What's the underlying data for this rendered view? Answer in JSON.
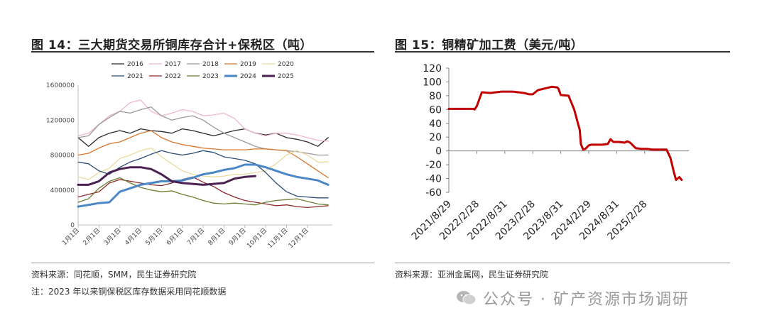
{
  "left": {
    "title": "图 14：三大期货交易所铜库存合计+保税区（吨）",
    "source": "资料来源：同花顺，SMM，民生证券研究院",
    "note": "注：2023 年以来铜保税区库存数据采用同花顺数据"
  },
  "right": {
    "title": "图 15：铜精矿加工费（美元/吨）",
    "source": "资料来源：亚洲金属网，民生证券研究院"
  },
  "watermark": "公众号 · 矿产资源市场调研",
  "chart_data": [
    {
      "type": "line",
      "ylim": [
        0,
        1600000
      ],
      "yticks": [
        0,
        400000,
        800000,
        1200000,
        1600000
      ],
      "x_range": [
        0,
        12.2
      ],
      "xticks": [
        "1月1日",
        "2月1日",
        "3月1日",
        "4月1日",
        "5月1日",
        "6月1日",
        "7月1日",
        "8月1日",
        "9月1日",
        "10月1日",
        "11月1日",
        "12月1日"
      ],
      "legend_position": "top",
      "series": [
        {
          "name": "2016",
          "color": "#2b2b2b",
          "width": 1.3,
          "x": [
            0,
            0.5,
            1,
            1.5,
            2,
            2.5,
            3,
            3.5,
            4,
            4.5,
            5,
            5.5,
            6,
            6.5,
            7,
            7.5,
            8,
            8.5,
            9,
            9.5,
            10,
            10.5,
            11,
            11.5,
            12
          ],
          "y": [
            1000000,
            900000,
            1000000,
            1050000,
            1080000,
            1050000,
            1100000,
            1080000,
            1070000,
            1050000,
            1100000,
            1080000,
            1050000,
            1020000,
            1050000,
            1080000,
            1100000,
            1050000,
            1030000,
            1050000,
            1000000,
            980000,
            950000,
            900000,
            1000000
          ]
        },
        {
          "name": "2017",
          "color": "#f0b8c6",
          "width": 1.3,
          "x": [
            0,
            0.5,
            1,
            1.5,
            2,
            2.5,
            3,
            3.5,
            4,
            4.5,
            5,
            5.5,
            6,
            6.5,
            7,
            7.5,
            8,
            8.5,
            9,
            9.5,
            10,
            10.5,
            11,
            11.5,
            12
          ],
          "y": [
            1020000,
            1050000,
            1150000,
            1250000,
            1300000,
            1400000,
            1430000,
            1300000,
            1250000,
            1280000,
            1320000,
            1300000,
            1250000,
            1260000,
            1280000,
            1220000,
            1100000,
            1050000,
            1020000,
            1050000,
            1050000,
            1030000,
            1000000,
            970000,
            960000
          ]
        },
        {
          "name": "2018",
          "color": "#9a9a9a",
          "width": 1.3,
          "x": [
            0,
            0.5,
            1,
            1.5,
            2,
            2.5,
            3,
            3.5,
            4,
            4.5,
            5,
            5.5,
            6,
            6.5,
            7,
            7.5,
            8,
            8.5,
            9,
            9.5,
            10,
            10.5,
            11,
            11.5,
            12
          ],
          "y": [
            1000000,
            1020000,
            1150000,
            1230000,
            1300000,
            1280000,
            1320000,
            1350000,
            1250000,
            1200000,
            1230000,
            1250000,
            1200000,
            1120000,
            1050000,
            1000000,
            950000,
            900000,
            870000,
            860000,
            850000,
            840000,
            820000,
            800000,
            800000
          ]
        },
        {
          "name": "2019",
          "color": "#d9762b",
          "width": 1.3,
          "x": [
            0,
            0.5,
            1,
            1.5,
            2,
            2.5,
            3,
            3.5,
            4,
            4.5,
            5,
            5.5,
            6,
            6.5,
            7,
            7.5,
            8,
            8.5,
            9,
            9.5,
            10,
            10.5,
            11,
            11.5,
            12
          ],
          "y": [
            800000,
            820000,
            880000,
            930000,
            950000,
            1000000,
            1050000,
            1080000,
            1000000,
            950000,
            920000,
            900000,
            880000,
            870000,
            860000,
            860000,
            860000,
            870000,
            870000,
            860000,
            850000,
            780000,
            700000,
            620000,
            540000
          ]
        },
        {
          "name": "2020",
          "color": "#eadba0",
          "width": 1.3,
          "x": [
            0,
            0.5,
            1,
            1.5,
            2,
            2.5,
            3,
            3.5,
            4,
            4.5,
            5,
            5.5,
            6,
            6.5,
            7,
            7.5,
            8,
            8.5,
            9,
            9.5,
            10,
            10.5,
            11,
            11.5,
            12
          ],
          "y": [
            550000,
            520000,
            600000,
            650000,
            760000,
            800000,
            850000,
            880000,
            780000,
            700000,
            620000,
            580000,
            560000,
            550000,
            560000,
            580000,
            580000,
            600000,
            620000,
            700000,
            800000,
            850000,
            800000,
            720000,
            720000
          ]
        },
        {
          "name": "2021",
          "color": "#2c4d77",
          "width": 1.3,
          "x": [
            0,
            0.5,
            1,
            1.5,
            2,
            2.5,
            3,
            3.5,
            4,
            4.5,
            5,
            5.5,
            6,
            6.5,
            7,
            7.5,
            8,
            8.5,
            9,
            9.5,
            10,
            10.5,
            11,
            11.5,
            12
          ],
          "y": [
            720000,
            700000,
            620000,
            580000,
            660000,
            720000,
            760000,
            810000,
            850000,
            820000,
            800000,
            820000,
            850000,
            830000,
            780000,
            760000,
            740000,
            700000,
            600000,
            480000,
            380000,
            330000,
            320000,
            310000,
            310000
          ]
        },
        {
          "name": "2022",
          "color": "#8e2b2b",
          "width": 1.3,
          "x": [
            0,
            0.5,
            1,
            1.5,
            2,
            2.5,
            3,
            3.5,
            4,
            4.5,
            5,
            5.5,
            6,
            6.5,
            7,
            7.5,
            8,
            8.5,
            9,
            9.5,
            10,
            10.5,
            11,
            11.5,
            12
          ],
          "y": [
            320000,
            350000,
            380000,
            480000,
            520000,
            500000,
            480000,
            460000,
            450000,
            480000,
            520000,
            550000,
            490000,
            440000,
            370000,
            320000,
            280000,
            260000,
            240000,
            220000,
            230000,
            210000,
            200000,
            210000,
            220000
          ]
        },
        {
          "name": "2023",
          "color": "#6b7f2f",
          "width": 1.3,
          "x": [
            0,
            0.5,
            1,
            1.5,
            2,
            2.5,
            3,
            3.5,
            4,
            4.5,
            5,
            5.5,
            6,
            6.5,
            7,
            7.5,
            8,
            8.5,
            9,
            9.5,
            10,
            10.5,
            11,
            11.5,
            12
          ],
          "y": [
            260000,
            300000,
            420000,
            500000,
            540000,
            480000,
            430000,
            400000,
            380000,
            390000,
            350000,
            320000,
            280000,
            250000,
            240000,
            250000,
            240000,
            230000,
            260000,
            280000,
            290000,
            300000,
            270000,
            240000,
            230000
          ]
        },
        {
          "name": "2024",
          "color": "#4b86c6",
          "width": 3,
          "x": [
            0,
            0.5,
            1,
            1.5,
            2,
            2.5,
            3,
            3.5,
            4,
            4.5,
            5,
            5.5,
            6,
            6.5,
            7,
            7.5,
            8,
            8.5,
            9,
            9.5,
            10,
            10.5,
            11,
            11.5,
            12
          ],
          "y": [
            210000,
            230000,
            250000,
            260000,
            380000,
            420000,
            460000,
            480000,
            500000,
            500000,
            510000,
            540000,
            580000,
            600000,
            630000,
            650000,
            690000,
            690000,
            660000,
            620000,
            580000,
            550000,
            530000,
            510000,
            460000
          ]
        },
        {
          "name": "2025",
          "color": "#4a2150",
          "width": 3,
          "x": [
            0,
            0.5,
            1,
            1.5,
            2,
            2.5,
            3,
            3.5,
            4,
            4.5,
            5,
            5.5,
            6,
            6.5,
            7,
            7.5,
            8,
            8.5
          ],
          "y": [
            460000,
            460000,
            500000,
            600000,
            640000,
            660000,
            660000,
            640000,
            580000,
            500000,
            480000,
            470000,
            460000,
            470000,
            480000,
            530000,
            550000,
            560000
          ]
        }
      ]
    },
    {
      "type": "line",
      "ylim": [
        -60,
        120
      ],
      "yticks": [
        -60,
        -40,
        -20,
        0,
        20,
        40,
        60,
        80,
        100,
        120
      ],
      "xlim": [
        2021.66,
        2025.95
      ],
      "xticks": [
        {
          "label": "2021/8/29",
          "t": 2021.66
        },
        {
          "label": "2022/2/28",
          "t": 2022.16
        },
        {
          "label": "2022/8/31",
          "t": 2022.66
        },
        {
          "label": "2023/2/28",
          "t": 2023.16
        },
        {
          "label": "2023/8/31",
          "t": 2023.66
        },
        {
          "label": "2024/2/29",
          "t": 2024.16
        },
        {
          "label": "2024/8/31",
          "t": 2024.66
        },
        {
          "label": "2025/2/28",
          "t": 2025.16
        }
      ],
      "series": [
        {
          "color": "#c00000",
          "width": 3,
          "x": [
            2021.66,
            2022.1,
            2022.12,
            2022.16,
            2022.25,
            2022.4,
            2022.6,
            2022.8,
            2022.9,
            2023.0,
            2023.1,
            2023.16,
            2023.25,
            2023.4,
            2023.5,
            2023.6,
            2023.62,
            2023.66,
            2023.8,
            2023.9,
            2024.0,
            2024.02,
            2024.06,
            2024.1,
            2024.16,
            2024.2,
            2024.4,
            2024.5,
            2024.55,
            2024.6,
            2024.7,
            2024.8,
            2024.85,
            2024.9,
            2024.95,
            2025.0,
            2025.1,
            2025.2,
            2025.3,
            2025.4,
            2025.55,
            2025.62,
            2025.65,
            2025.68,
            2025.72,
            2025.78,
            2025.82
          ],
          "y": [
            61,
            61,
            60,
            65,
            85,
            84,
            86,
            86,
            85,
            84,
            82,
            82,
            88,
            91,
            93,
            92,
            90,
            81,
            80,
            60,
            30,
            10,
            2,
            3,
            8,
            9,
            9,
            10,
            17,
            13,
            13,
            12,
            14,
            12,
            8,
            4,
            3,
            3,
            2,
            2,
            2,
            -10,
            -20,
            -30,
            -42,
            -38,
            -42
          ]
        }
      ]
    }
  ]
}
